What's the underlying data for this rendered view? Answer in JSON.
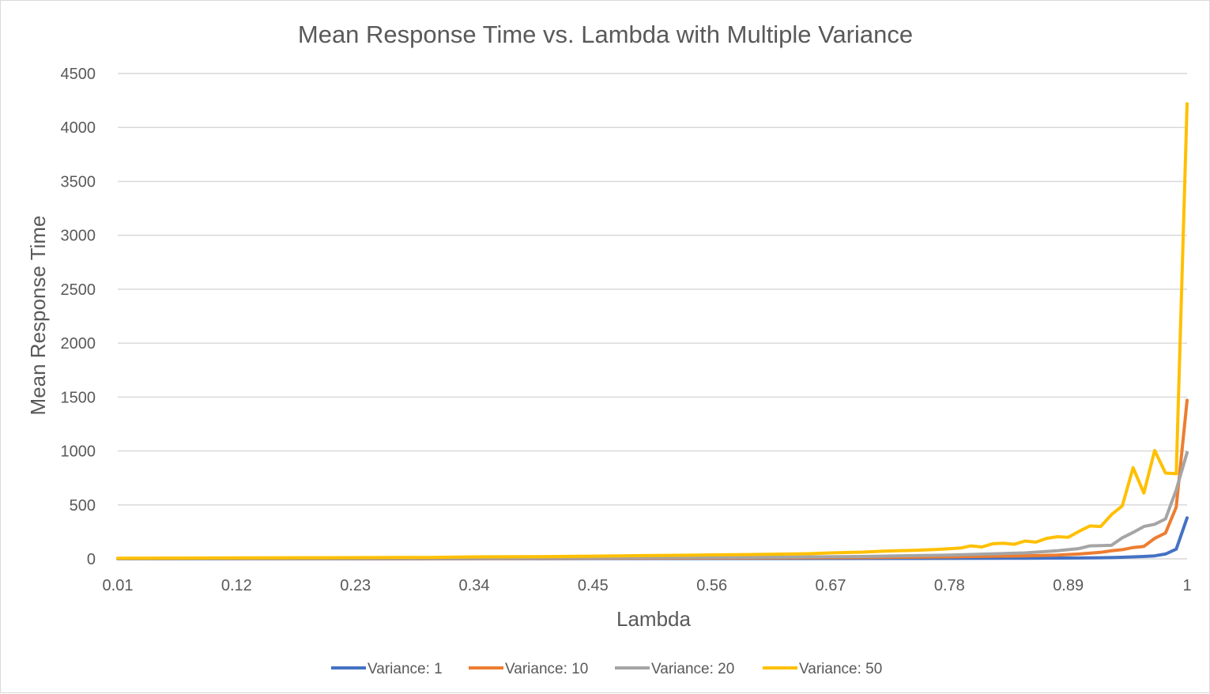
{
  "chart_data": {
    "type": "line",
    "title": "Mean Response Time vs. Lambda with Multiple Variance",
    "xlabel": "Lambda",
    "ylabel": "Mean Response Time",
    "xlim": [
      0.01,
      1.0
    ],
    "ylim": [
      0,
      4500
    ],
    "x_tick_labels": [
      "0.01",
      "0.12",
      "0.23",
      "0.34",
      "0.45",
      "0.56",
      "0.67",
      "0.78",
      "0.89",
      "1"
    ],
    "y_ticks": [
      0,
      500,
      1000,
      1500,
      2000,
      2500,
      3000,
      3500,
      4000,
      4500
    ],
    "grid": true,
    "legend_position": "bottom",
    "series": [
      {
        "name": "Variance: 1",
        "color": "#4472C4",
        "points": [
          [
            0.01,
            1
          ],
          [
            0.2,
            1
          ],
          [
            0.4,
            2
          ],
          [
            0.6,
            3
          ],
          [
            0.75,
            4
          ],
          [
            0.85,
            6
          ],
          [
            0.9,
            8
          ],
          [
            0.92,
            10
          ],
          [
            0.93,
            12
          ],
          [
            0.94,
            15
          ],
          [
            0.95,
            18
          ],
          [
            0.96,
            22
          ],
          [
            0.97,
            28
          ],
          [
            0.98,
            45
          ],
          [
            0.99,
            90
          ],
          [
            1.0,
            380
          ]
        ]
      },
      {
        "name": "Variance: 10",
        "color": "#ED7D31",
        "points": [
          [
            0.01,
            3
          ],
          [
            0.2,
            4
          ],
          [
            0.4,
            5
          ],
          [
            0.6,
            8
          ],
          [
            0.7,
            12
          ],
          [
            0.78,
            18
          ],
          [
            0.85,
            28
          ],
          [
            0.88,
            35
          ],
          [
            0.9,
            45
          ],
          [
            0.92,
            60
          ],
          [
            0.93,
            75
          ],
          [
            0.94,
            85
          ],
          [
            0.95,
            105
          ],
          [
            0.96,
            115
          ],
          [
            0.97,
            190
          ],
          [
            0.98,
            240
          ],
          [
            0.99,
            480
          ],
          [
            1.0,
            1470
          ]
        ]
      },
      {
        "name": "Variance: 20",
        "color": "#A5A5A5",
        "points": [
          [
            0.01,
            4
          ],
          [
            0.2,
            6
          ],
          [
            0.4,
            9
          ],
          [
            0.6,
            14
          ],
          [
            0.7,
            22
          ],
          [
            0.78,
            35
          ],
          [
            0.85,
            55
          ],
          [
            0.88,
            75
          ],
          [
            0.9,
            95
          ],
          [
            0.91,
            120
          ],
          [
            0.93,
            125
          ],
          [
            0.94,
            195
          ],
          [
            0.95,
            245
          ],
          [
            0.96,
            300
          ],
          [
            0.97,
            320
          ],
          [
            0.98,
            370
          ],
          [
            0.99,
            640
          ],
          [
            1.0,
            985
          ]
        ]
      },
      {
        "name": "Variance: 50",
        "color": "#FFC000",
        "points": [
          [
            0.01,
            6
          ],
          [
            0.1,
            8
          ],
          [
            0.2,
            10
          ],
          [
            0.3,
            13
          ],
          [
            0.34,
            18
          ],
          [
            0.4,
            20
          ],
          [
            0.45,
            25
          ],
          [
            0.5,
            30
          ],
          [
            0.55,
            35
          ],
          [
            0.6,
            40
          ],
          [
            0.65,
            48
          ],
          [
            0.67,
            55
          ],
          [
            0.7,
            62
          ],
          [
            0.72,
            72
          ],
          [
            0.75,
            80
          ],
          [
            0.77,
            88
          ],
          [
            0.79,
            100
          ],
          [
            0.8,
            120
          ],
          [
            0.81,
            110
          ],
          [
            0.82,
            140
          ],
          [
            0.83,
            145
          ],
          [
            0.84,
            135
          ],
          [
            0.85,
            165
          ],
          [
            0.86,
            155
          ],
          [
            0.87,
            190
          ],
          [
            0.88,
            205
          ],
          [
            0.89,
            200
          ],
          [
            0.9,
            255
          ],
          [
            0.91,
            305
          ],
          [
            0.92,
            300
          ],
          [
            0.93,
            410
          ],
          [
            0.94,
            490
          ],
          [
            0.95,
            845
          ],
          [
            0.96,
            610
          ],
          [
            0.97,
            1005
          ],
          [
            0.98,
            795
          ],
          [
            0.99,
            790
          ],
          [
            1.0,
            4220
          ]
        ]
      }
    ]
  }
}
